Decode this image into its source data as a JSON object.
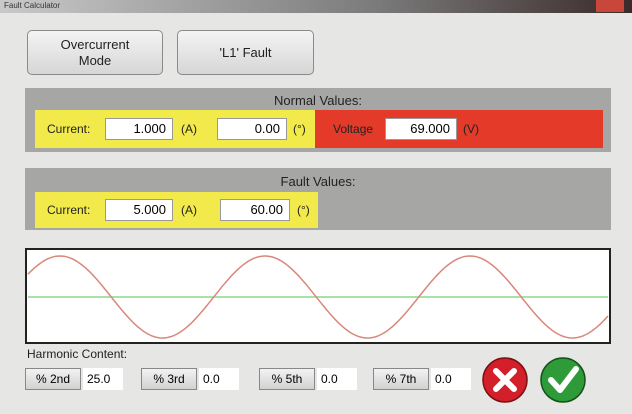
{
  "window": {
    "title": "Fault Calculator"
  },
  "buttons": [
    "Overcurrent Mode",
    "'L1' Fault"
  ],
  "normal": {
    "title": "Normal Values:",
    "current_label": "Current:",
    "current": "1.000",
    "current_unit": "(A)",
    "angle": "0.00",
    "angle_unit": "(°)",
    "voltage_label": "Voltage",
    "voltage": "69.000",
    "voltage_unit": "(V)"
  },
  "fault": {
    "title": "Fault Values:",
    "current_label": "Current:",
    "current": "5.000",
    "current_unit": "(A)",
    "angle": "60.00",
    "angle_unit": "(°)"
  },
  "harmonics": {
    "title": "Harmonic Content:",
    "items": [
      {
        "label": "% 2nd",
        "value": "25.0"
      },
      {
        "label": "% 3rd",
        "value": "0.0"
      },
      {
        "label": "% 5th",
        "value": "0.0"
      },
      {
        "label": "% 7th",
        "value": "0.0"
      }
    ]
  }
}
